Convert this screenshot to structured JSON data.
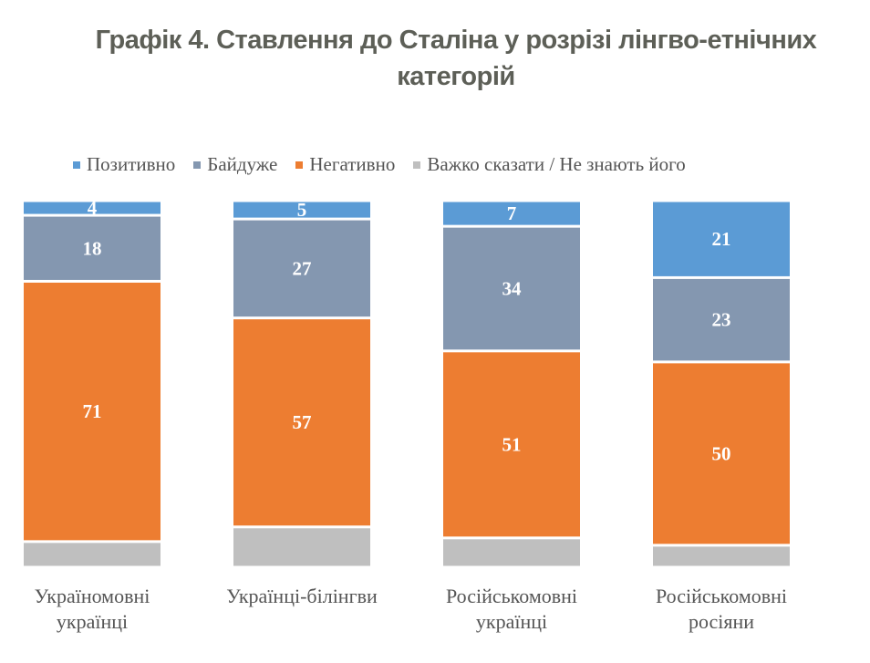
{
  "chart_data": {
    "type": "bar",
    "stacked": true,
    "title": "Графік 4. Ставлення до Сталіна у розрізі лінгво-етнічних категорій",
    "xlabel": "",
    "ylabel": "",
    "ylim": [
      0,
      100
    ],
    "grid": false,
    "legend_position": "top",
    "categories": [
      "Україномовні українці",
      "Українці-білінгви",
      "Російськомовні українці",
      "Російськомовні росіяни"
    ],
    "series": [
      {
        "name": "Позитивно",
        "color": "#5b9bd5",
        "values": [
          4,
          5,
          7,
          21
        ],
        "labeled": true
      },
      {
        "name": "Байдуже",
        "color": "#8497b0",
        "values": [
          18,
          27,
          34,
          23
        ],
        "labeled": true
      },
      {
        "name": "Негативно",
        "color": "#ed7d31",
        "values": [
          71,
          57,
          51,
          50
        ],
        "labeled": true
      },
      {
        "name": "Важко сказати / Не знають його",
        "color": "#bfbfbf",
        "values": [
          7,
          11,
          8,
          6
        ],
        "labeled": false
      }
    ]
  },
  "title_line1": "Графік 4. Ставлення до Сталіна у розрізі лінгво-етнічних",
  "title_line2": "категорій",
  "category_labels": [
    "Україномовні\nукраїнці",
    "Українці-білінгви",
    "Російськомовні\nукраїнці",
    "Російськомовні\nросіяни"
  ]
}
